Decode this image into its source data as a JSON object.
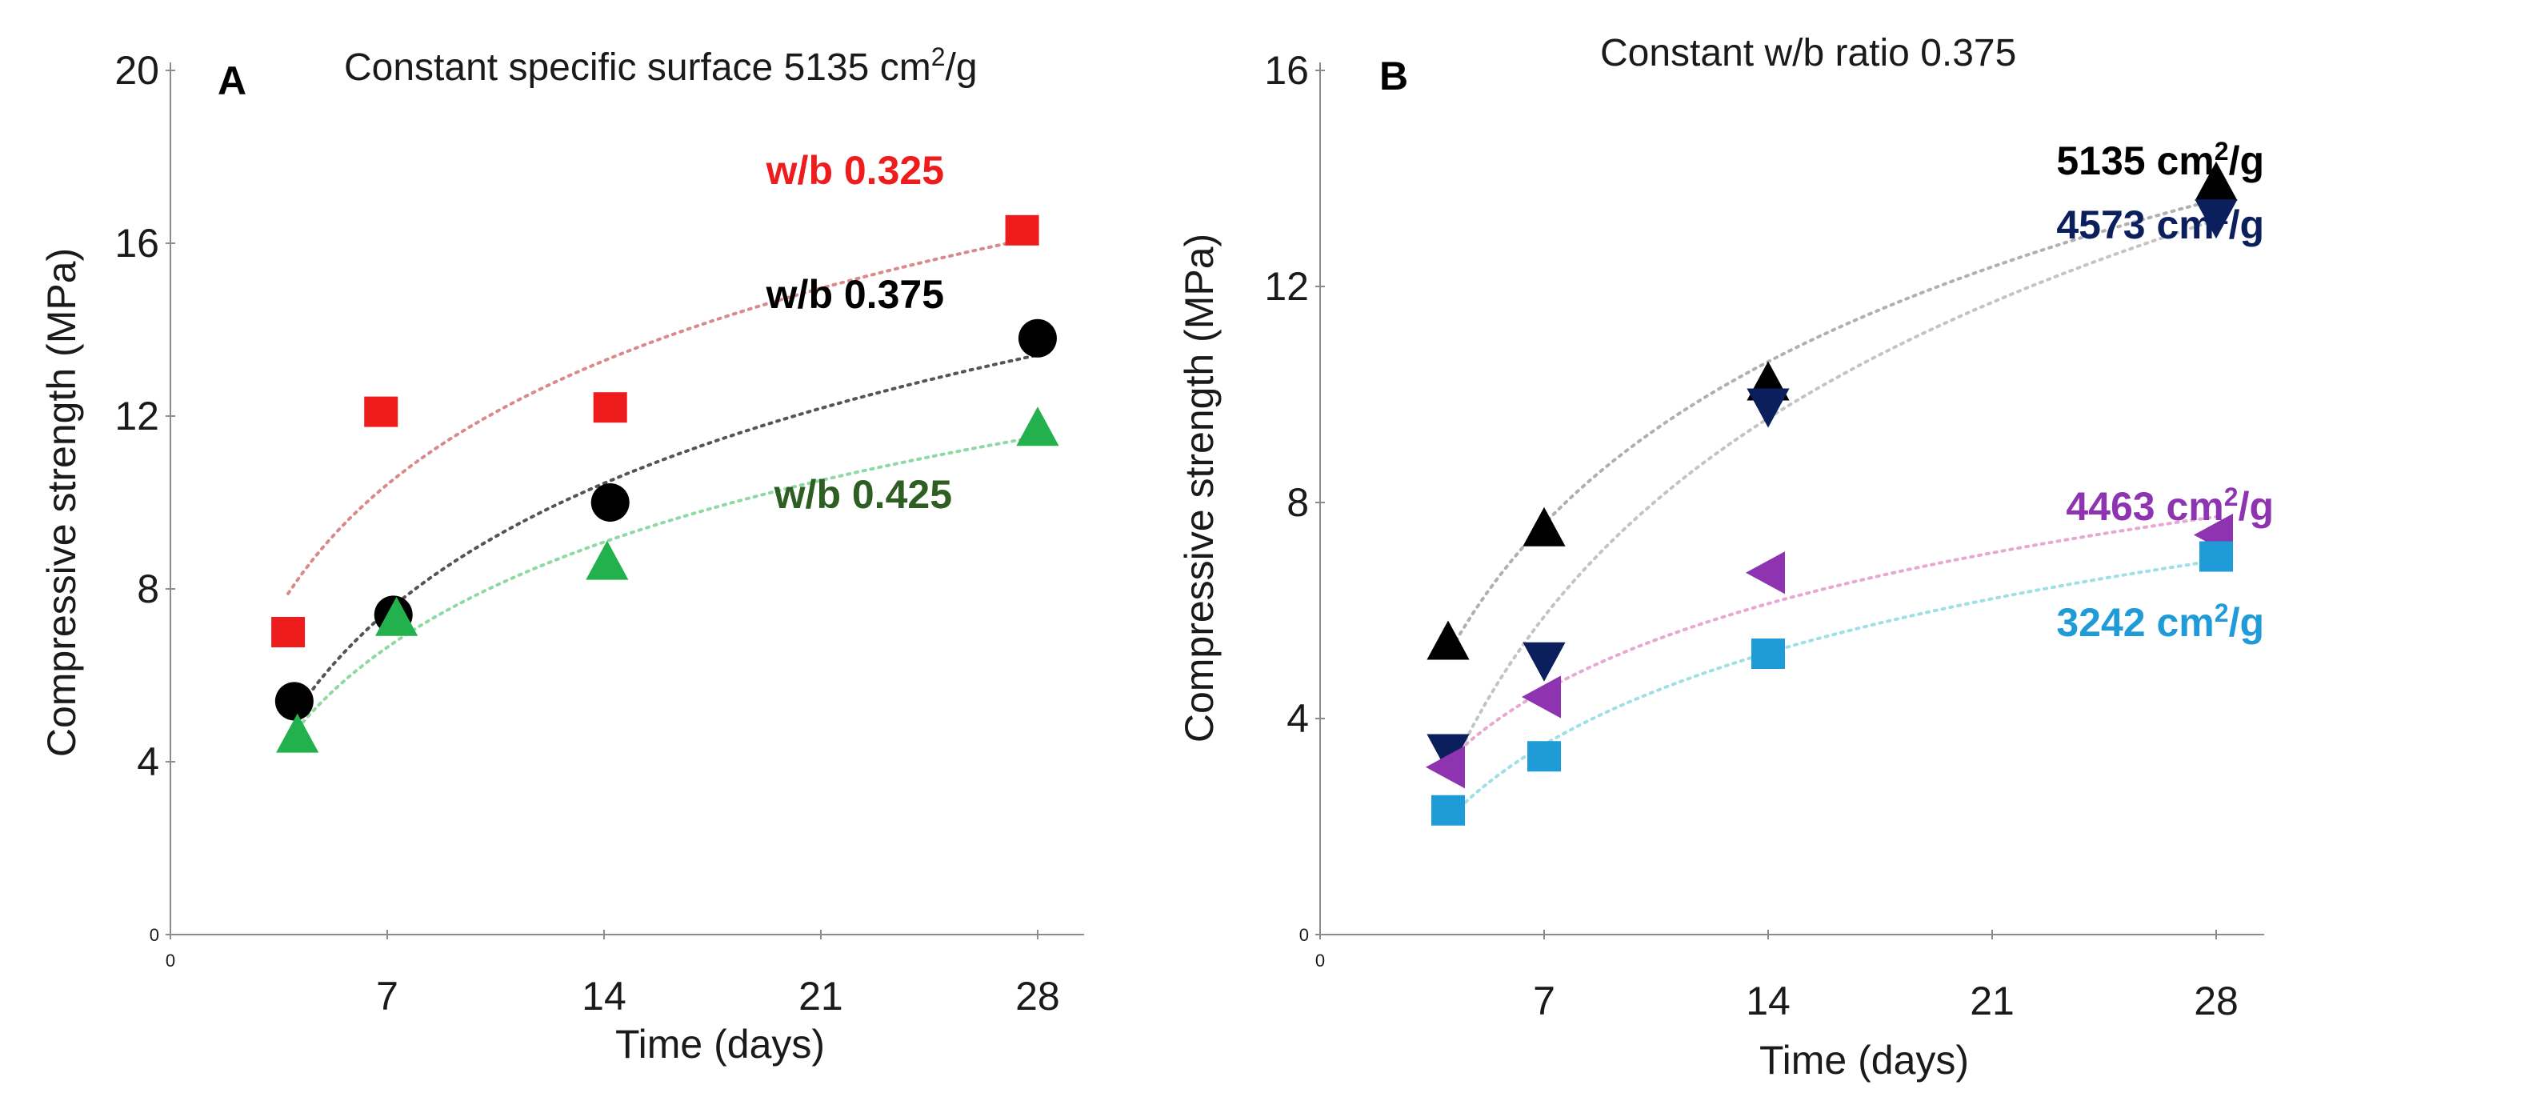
{
  "chart_data": [
    {
      "type": "scatter",
      "panel_label": "A",
      "title": "Constant specific surface 5135 cm",
      "title_sup": "2",
      "title_suffix": "/g",
      "xlabel": "Time (days)",
      "ylabel": "Compressive strength (MPa)",
      "xlim": [
        0,
        29.5
      ],
      "ylim": [
        0,
        20
      ],
      "xticks": [
        0,
        7,
        14,
        21,
        28
      ],
      "yticks": [
        0,
        4,
        8,
        12,
        16,
        20
      ],
      "grid": false,
      "series": [
        {
          "name": "w/b 0.325",
          "marker": "square",
          "color": "#ee1c1c",
          "trend_color": "#d98a8a",
          "x": [
            3.8,
            6.8,
            14.2,
            27.5
          ],
          "y": [
            7.0,
            12.1,
            12.2,
            16.3
          ]
        },
        {
          "name": "w/b 0.375",
          "marker": "circle",
          "color": "#000000",
          "trend_color": "#555555",
          "x": [
            4.0,
            7.2,
            14.2,
            28.0
          ],
          "y": [
            5.4,
            7.4,
            10.0,
            13.8
          ]
        },
        {
          "name": "w/b 0.425",
          "marker": "triangle-up",
          "color": "#22b14c",
          "trend_color": "#8fd9a3",
          "x": [
            4.1,
            7.3,
            14.1,
            28.0
          ],
          "y": [
            4.6,
            7.3,
            8.6,
            11.7
          ]
        }
      ],
      "series_label_colors": [
        "#ee1c1c",
        "#000000",
        "#2d5e22"
      ]
    },
    {
      "type": "scatter",
      "panel_label": "B",
      "title": "Constant w/b ratio 0.375",
      "xlabel": "Time (days)",
      "ylabel": "Compressive strength (MPa)",
      "xlim": [
        0,
        29.5
      ],
      "ylim": [
        0,
        16
      ],
      "xticks": [
        0,
        7,
        14,
        21,
        28
      ],
      "yticks": [
        0,
        4,
        8,
        12,
        16
      ],
      "grid": false,
      "series": [
        {
          "name": "5135 cm",
          "name_sup": "2",
          "name_suffix": "/g",
          "marker": "triangle-up",
          "color": "#000000",
          "trend_color": "#b0b0b0",
          "x": [
            4.0,
            7.0,
            14.0,
            28.0
          ],
          "y": [
            5.4,
            7.5,
            10.2,
            13.9
          ]
        },
        {
          "name": "4573 cm",
          "name_sup": "2",
          "name_suffix": "/g",
          "marker": "triangle-down",
          "color": "#0b1f5c",
          "trend_color": "#c4c4c4",
          "x": [
            4.0,
            7.0,
            14.0,
            28.0
          ],
          "y": [
            3.4,
            5.1,
            9.8,
            13.3
          ]
        },
        {
          "name": "4463 cm",
          "name_sup": "2",
          "name_suffix": "/g",
          "marker": "triangle-left",
          "color": "#8e34b0",
          "trend_color": "#e7a9d2",
          "x": [
            4.0,
            7.0,
            14.0,
            28.0
          ],
          "y": [
            3.1,
            4.4,
            6.7,
            7.4
          ]
        },
        {
          "name": "3242 cm",
          "name_sup": "2",
          "name_suffix": "/g",
          "marker": "square",
          "color": "#1f9bd7",
          "trend_color": "#9fdfe6",
          "x": [
            4.0,
            7.0,
            14.0,
            28.0
          ],
          "y": [
            2.3,
            3.3,
            5.2,
            7.0
          ]
        }
      ],
      "series_label_colors": [
        "#000000",
        "#0b1f5c",
        "#8e34b0",
        "#1f9bd7"
      ]
    }
  ]
}
